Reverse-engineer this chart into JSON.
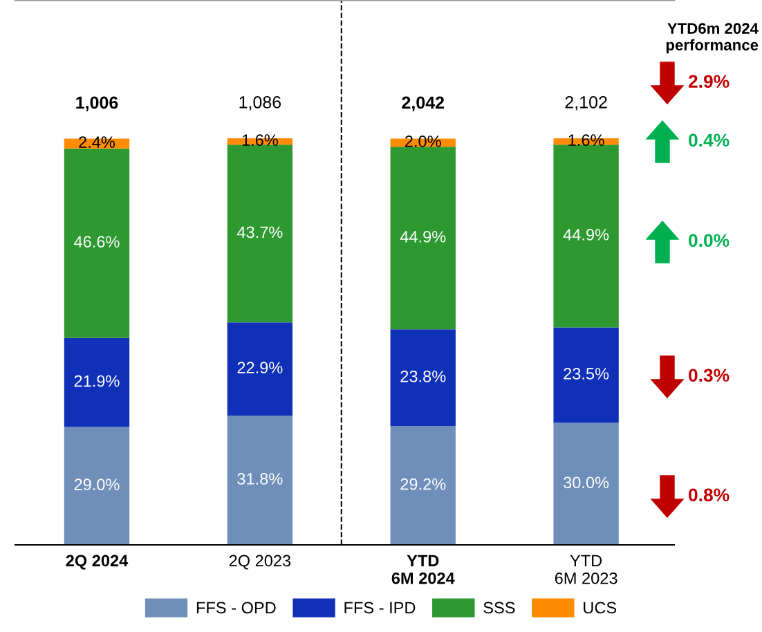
{
  "chart_data": {
    "type": "bar",
    "stacked": true,
    "categories": [
      "2Q 2024",
      "2Q 2023",
      "YTD\n6M 2024",
      "YTD\n6M 2023"
    ],
    "series": [
      {
        "name": "FFS - OPD",
        "color": "#6f8fba",
        "values": [
          29.0,
          31.8,
          29.2,
          30.0
        ],
        "value_labels": [
          "29.0%",
          "31.8%",
          "29.2%",
          "30.0%"
        ]
      },
      {
        "name": "FFS - IPD",
        "color": "#1030b8",
        "values": [
          21.9,
          22.9,
          23.8,
          23.5
        ],
        "value_labels": [
          "21.9%",
          "22.9%",
          "23.8%",
          "23.5%"
        ]
      },
      {
        "name": "SSS",
        "color": "#2e9930",
        "values": [
          46.6,
          43.7,
          44.9,
          44.9
        ],
        "value_labels": [
          "46.6%",
          "43.7%",
          "44.9%",
          "44.9%"
        ]
      },
      {
        "name": "UCS",
        "color": "#ff8c00",
        "values": [
          2.4,
          1.6,
          2.0,
          1.6
        ],
        "value_labels": [
          "2.4%",
          "1.6%",
          "2.0%",
          "1.6%"
        ]
      }
    ],
    "ylim": [
      0,
      134
    ],
    "annotations": [
      "1,006",
      "1,086",
      "2,042",
      "2,102",
      "YTD6m 2024\nperformance",
      "2.9%",
      "0.4%",
      "0.0%",
      "0.3%",
      "0.8%"
    ],
    "legend": "bottom",
    "grid": false
  }
}
